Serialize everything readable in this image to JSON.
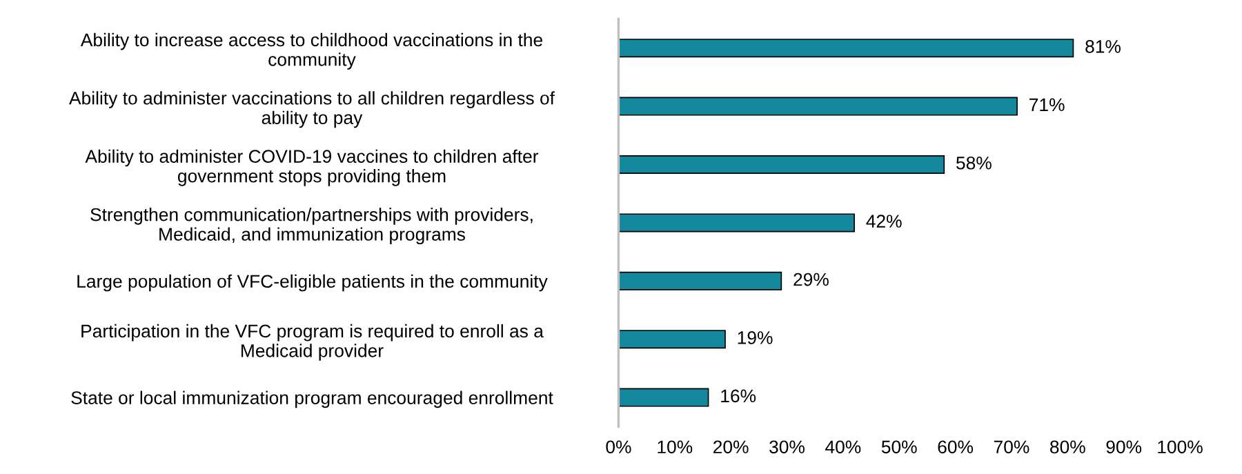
{
  "chart_data": {
    "type": "bar",
    "orientation": "horizontal",
    "categories": [
      "Ability to increase access to childhood vaccinations in the\ncommunity",
      "Ability to administer vaccinations to all children regardless of\nability to pay",
      "Ability to administer COVID-19 vaccines to children after\ngovernment stops providing them",
      "Strengthen communication/partnerships with providers,\nMedicaid, and immunization programs",
      "Large population of VFC-eligible patients in the community",
      "Participation in the VFC program is required to enroll as a\nMedicaid provider",
      "State or local immunization program encouraged enrollment"
    ],
    "values": [
      81,
      71,
      58,
      42,
      29,
      19,
      16
    ],
    "value_labels": [
      "81%",
      "71%",
      "58%",
      "42%",
      "29%",
      "19%",
      "16%"
    ],
    "color": "#14889c",
    "xlim": [
      0,
      100
    ],
    "xticks": [
      {
        "value": 0,
        "label": "0%"
      },
      {
        "value": 10,
        "label": "10%"
      },
      {
        "value": 20,
        "label": "20%"
      },
      {
        "value": 30,
        "label": "30%"
      },
      {
        "value": 40,
        "label": "40%"
      },
      {
        "value": 50,
        "label": "50%"
      },
      {
        "value": 60,
        "label": "60%"
      },
      {
        "value": 70,
        "label": "70%"
      },
      {
        "value": 80,
        "label": "80%"
      },
      {
        "value": 90,
        "label": "90%"
      },
      {
        "value": 100,
        "label": "100%"
      }
    ],
    "grid": false,
    "legend": false
  }
}
